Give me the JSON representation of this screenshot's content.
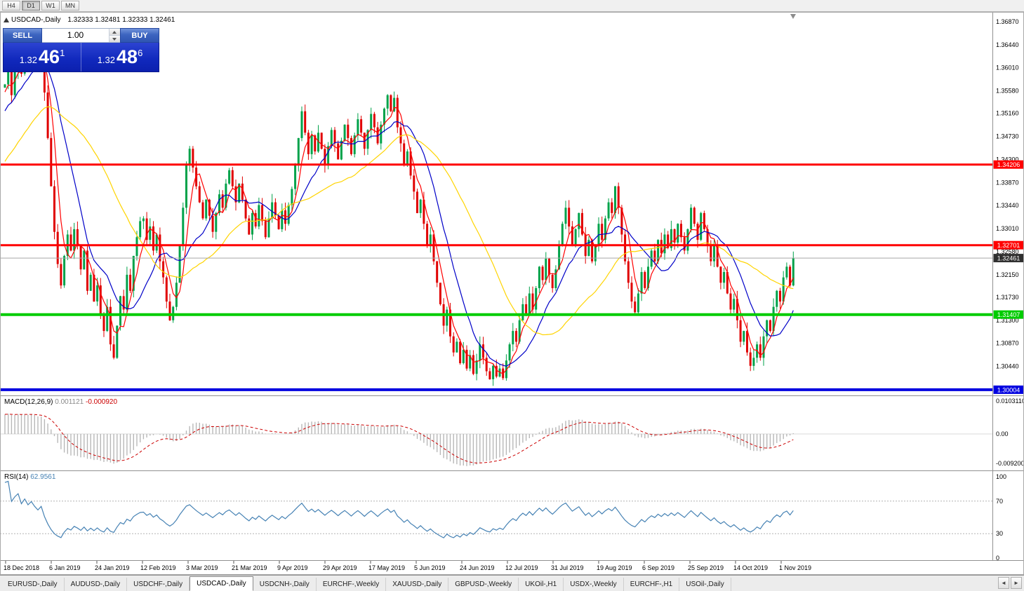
{
  "toolbar": {
    "periods": [
      {
        "label": "H4",
        "active": false
      },
      {
        "label": "D1",
        "active": true
      },
      {
        "label": "W1",
        "active": false
      },
      {
        "label": "MN",
        "active": false
      }
    ]
  },
  "chart": {
    "title_symbol": "USDCAD-,Daily",
    "ohlc": "1.32333 1.32481 1.32333 1.32461"
  },
  "trade_panel": {
    "sell_label": "SELL",
    "buy_label": "BUY",
    "volume": "1.00",
    "sell_big": {
      "prefix": "1.32",
      "digits": "46",
      "sup": "1"
    },
    "buy_big": {
      "prefix": "1.32",
      "digits": "48",
      "sup": "6"
    }
  },
  "price_axis": {
    "labels": [
      "1.36870",
      "1.36440",
      "1.36010",
      "1.35580",
      "1.35160",
      "1.34730",
      "1.34300",
      "1.33870",
      "1.33440",
      "1.33010",
      "1.32580",
      "1.32150",
      "1.31730",
      "1.31300",
      "1.30870",
      "1.30440"
    ]
  },
  "hlines": [
    {
      "label": "1.34206",
      "price": 1.34206,
      "color": "#ff0000",
      "width": 3
    },
    {
      "label": "1.32701",
      "price": 1.32701,
      "color": "#ff0000",
      "width": 3
    },
    {
      "label": "1.31407",
      "price": 1.31407,
      "color": "#00cc00",
      "width": 4
    },
    {
      "label": "1.30004",
      "price": 1.30004,
      "color": "#0000e0",
      "width": 4
    }
  ],
  "current_price": {
    "label": "1.32461",
    "value": 1.32461,
    "badge_color": "#2f2f2f",
    "line_color": "#a8a8a8"
  },
  "indicators": {
    "macd": {
      "name": "MACD(12,26,9)",
      "value1": "0.001121",
      "value2": "-0.000920",
      "axis": [
        {
          "text": "0.0103110",
          "value": 0.010311
        },
        {
          "text": "0.00",
          "value": 0
        },
        {
          "text": "-0.0092000",
          "value": -0.0092
        }
      ]
    },
    "rsi": {
      "name": "RSI(14)",
      "value": "62.9561",
      "levels": [
        70,
        30
      ],
      "axis": [
        {
          "text": "100",
          "value": 100
        },
        {
          "text": "70",
          "value": 70
        },
        {
          "text": "30",
          "value": 30
        },
        {
          "text": "0",
          "value": 0
        }
      ]
    }
  },
  "date_axis": [
    "18 Dec 2018",
    "6 Jan 2019",
    "24 Jan 2019",
    "12 Feb 2019",
    "3 Mar 2019",
    "21 Mar 2019",
    "9 Apr 2019",
    "29 Apr 2019",
    "17 May 2019",
    "5 Jun 2019",
    "24 Jun 2019",
    "12 Jul 2019",
    "31 Jul 2019",
    "19 Aug 2019",
    "6 Sep 2019",
    "25 Sep 2019",
    "14 Oct 2019",
    "1 Nov 2019"
  ],
  "tabs": [
    {
      "label": "EURUSD-,Daily",
      "active": false
    },
    {
      "label": "AUDUSD-,Daily",
      "active": false
    },
    {
      "label": "USDCHF-,Daily",
      "active": false
    },
    {
      "label": "USDCAD-,Daily",
      "active": true
    },
    {
      "label": "USDCNH-,Daily",
      "active": false
    },
    {
      "label": "EURCHF-,Weekly",
      "active": false
    },
    {
      "label": "XAUUSD-,Daily",
      "active": false
    },
    {
      "label": "GBPUSD-,Weekly",
      "active": false
    },
    {
      "label": "UKOil-,H1",
      "active": false
    },
    {
      "label": "USDX-,Weekly",
      "active": false
    },
    {
      "label": "EURCHF-,H1",
      "active": false
    },
    {
      "label": "USOil-,Daily",
      "active": false
    }
  ],
  "colors": {
    "up": "#00a24a",
    "down": "#e00000",
    "ma_fast": "#ff0000",
    "ma_mid": "#0000c8",
    "ma_slow": "#ffd400",
    "macd_hist": "#b8b8b8",
    "macd_signal": "#cc0000",
    "rsi": "#4682b4"
  },
  "chart_data": {
    "type": "candlestick",
    "symbol": "USDCAD",
    "timeframe": "Daily",
    "start_date": "18 Dec 2018",
    "end_date": "8 Nov 2019",
    "price_range": [
      1.299,
      1.3705
    ],
    "last_close": 1.32461,
    "horizontal_levels": [
      1.34206,
      1.32701,
      1.31407,
      1.30004
    ],
    "overlays": [
      {
        "name": "ma-fast",
        "type": "sma",
        "period": 5,
        "color": "#ff0000"
      },
      {
        "name": "ma-mid",
        "type": "sma",
        "period": 13,
        "color": "#0000c8"
      },
      {
        "name": "ma-slow",
        "type": "sma",
        "period": 34,
        "color": "#ffd400"
      }
    ],
    "closes": [
      1.357,
      1.3605,
      1.355,
      1.3595,
      1.3635,
      1.359,
      1.3648,
      1.3615,
      1.3655,
      1.3625,
      1.36,
      1.364,
      1.3555,
      1.347,
      1.338,
      1.3295,
      1.3235,
      1.3195,
      1.325,
      1.329,
      1.326,
      1.33,
      1.327,
      1.3225,
      1.326,
      1.3185,
      1.3215,
      1.3165,
      1.3195,
      1.314,
      1.311,
      1.3155,
      1.3085,
      1.306,
      1.312,
      1.3175,
      1.315,
      1.3215,
      1.3185,
      1.325,
      1.3285,
      1.3315,
      1.332,
      1.328,
      1.3305,
      1.326,
      1.329,
      1.324,
      1.321,
      1.3165,
      1.313,
      1.3155,
      1.32,
      1.327,
      1.334,
      1.342,
      1.345,
      1.3415,
      1.338,
      1.335,
      1.332,
      1.3355,
      1.3325,
      1.3295,
      1.333,
      1.3365,
      1.334,
      1.3385,
      1.341,
      1.338,
      1.335,
      1.3385,
      1.3355,
      1.332,
      1.329,
      1.333,
      1.3305,
      1.3345,
      1.3315,
      1.3285,
      1.332,
      1.335,
      1.3325,
      1.33,
      1.3335,
      1.331,
      1.3345,
      1.3375,
      1.342,
      1.347,
      1.352,
      1.348,
      1.344,
      1.3475,
      1.3445,
      1.348,
      1.345,
      1.342,
      1.3455,
      1.3485,
      1.346,
      1.343,
      1.3465,
      1.3495,
      1.347,
      1.344,
      1.3475,
      1.3505,
      1.348,
      1.345,
      1.3485,
      1.3515,
      1.349,
      1.346,
      1.3495,
      1.3525,
      1.355,
      1.352,
      1.3545,
      1.349,
      1.346,
      1.342,
      1.3445,
      1.34,
      1.337,
      1.333,
      1.3355,
      1.331,
      1.327,
      1.329,
      1.324,
      1.32,
      1.316,
      1.312,
      1.315,
      1.31,
      1.307,
      1.309,
      1.305,
      1.3075,
      1.304,
      1.3065,
      1.303,
      1.3055,
      1.3085,
      1.306,
      1.3035,
      1.302,
      1.3045,
      1.3025,
      1.304,
      1.3022,
      1.3055,
      1.3085,
      1.311,
      1.309,
      1.313,
      1.316,
      1.314,
      1.318,
      1.315,
      1.319,
      1.323,
      1.3205,
      1.3245,
      1.3215,
      1.319,
      1.3225,
      1.327,
      1.331,
      1.334,
      1.3305,
      1.327,
      1.33,
      1.333,
      1.329,
      1.325,
      1.328,
      1.324,
      1.327,
      1.331,
      1.328,
      1.332,
      1.335,
      1.333,
      1.338,
      1.334,
      1.329,
      1.324,
      1.32,
      1.3165,
      1.3145,
      1.318,
      1.322,
      1.319,
      1.323,
      1.326,
      1.324,
      1.328,
      1.3255,
      1.329,
      1.3265,
      1.33,
      1.3275,
      1.331,
      1.3285,
      1.326,
      1.33,
      1.334,
      1.331,
      1.328,
      1.333,
      1.33,
      1.327,
      1.324,
      1.327,
      1.323,
      1.32,
      1.322,
      1.318,
      1.315,
      1.317,
      1.313,
      1.309,
      1.311,
      1.307,
      1.3045,
      1.306,
      1.3085,
      1.306,
      1.31,
      1.313,
      1.311,
      1.3155,
      1.3185,
      1.3165,
      1.321,
      1.323,
      1.3195,
      1.32461
    ]
  }
}
